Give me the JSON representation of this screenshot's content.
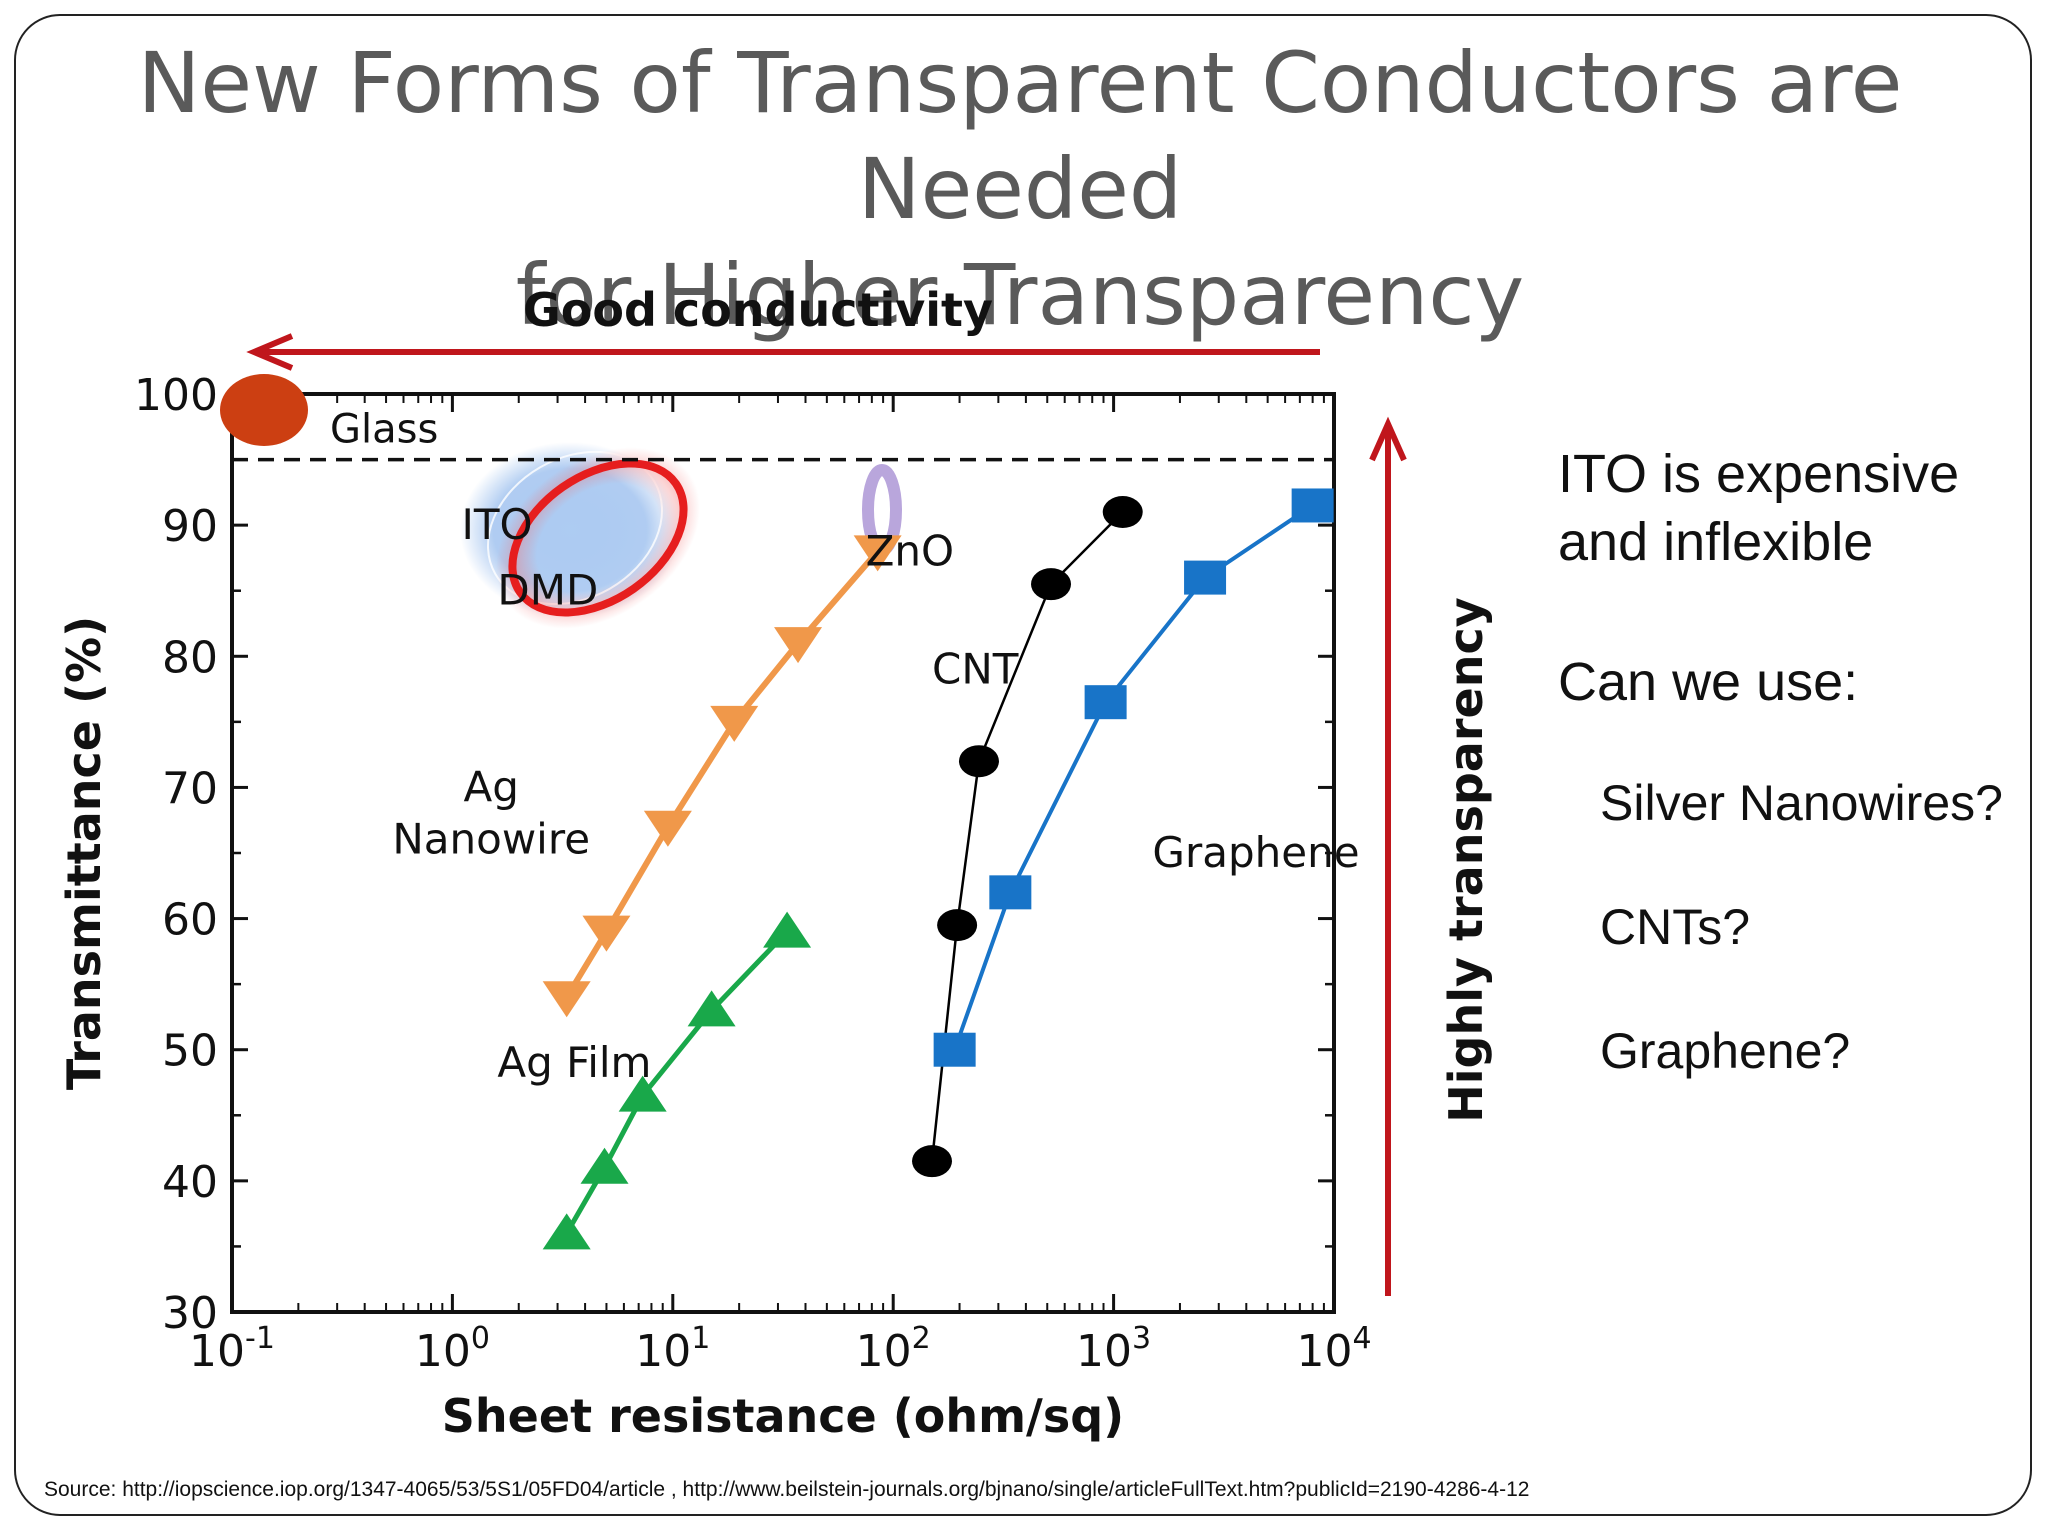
{
  "slide": {
    "title_line1": "New Forms of Transparent Conductors are Needed",
    "title_line2": "for Higher Transparency",
    "notes_main_line1": "ITO is expensive",
    "notes_main_line2": "and inflexible",
    "notes_question": "Can we use:",
    "notes_items": [
      "Silver Nanowires?",
      "CNTs?",
      "Graphene?"
    ],
    "source": "Source: http://iopscience.iop.org/1347-4065/53/5S1/05FD04/article , http://www.beilstein-journals.org/bjnano/single/articleFullText.htm?publicId=2190-4286-4-12"
  },
  "chart_data": {
    "type": "line",
    "xlabel": "Sheet resistance (ohm/sq)",
    "ylabel": "Transmittance (%)",
    "x_scale": "log",
    "xlim": [
      0.1,
      10000
    ],
    "ylim": [
      30,
      100
    ],
    "x_ticks": [
      {
        "value": 0.1,
        "base": "10",
        "exp": "-1"
      },
      {
        "value": 1,
        "base": "10",
        "exp": "0"
      },
      {
        "value": 10,
        "base": "10",
        "exp": "1"
      },
      {
        "value": 100,
        "base": "10",
        "exp": "2"
      },
      {
        "value": 1000,
        "base": "10",
        "exp": "3"
      },
      {
        "value": 10000,
        "base": "10",
        "exp": "4"
      }
    ],
    "y_ticks": [
      30,
      40,
      50,
      60,
      70,
      80,
      90,
      100
    ],
    "top_arrow_label": "Good conductivity",
    "right_arrow_label": "Highly transparency",
    "glass_level": 95,
    "glass_label": "Glass",
    "series": [
      {
        "name": "Ag Film",
        "marker": "triangle-up",
        "color": "#19a84a",
        "x": [
          3.3,
          4.9,
          7.3,
          15,
          33
        ],
        "y": [
          36,
          41,
          46.5,
          53,
          59
        ]
      },
      {
        "name": "Ag Nanowire",
        "marker": "triangle-down",
        "color": "#f0984a",
        "x": [
          3.3,
          5.0,
          9.5,
          19,
          37,
          85
        ],
        "y": [
          54,
          59,
          67,
          75,
          81,
          88
        ]
      },
      {
        "name": "CNT",
        "marker": "circle",
        "color": "#000000",
        "x": [
          150,
          195,
          245,
          520,
          1100
        ],
        "y": [
          41.5,
          59.5,
          72,
          85.5,
          91
        ]
      },
      {
        "name": "Graphene",
        "marker": "square",
        "color": "#1874c8",
        "x": [
          190,
          340,
          920,
          2600,
          8000
        ],
        "y": [
          50,
          62,
          76.5,
          86,
          91.5
        ]
      }
    ],
    "annotations": [
      {
        "label": "ITO",
        "x": 1.1,
        "y": 90
      },
      {
        "label": "DMD",
        "x": 1.6,
        "y": 85
      },
      {
        "label": "ZnO",
        "x": 75,
        "y": 88
      },
      {
        "label": "Ag Nanowire",
        "x": 1.5,
        "y": 70
      },
      {
        "label": "Ag Film",
        "x": 1.6,
        "y": 49
      },
      {
        "label": "CNT",
        "x": 150,
        "y": 79
      },
      {
        "label": "Graphene",
        "x": 1500,
        "y": 65
      }
    ]
  }
}
